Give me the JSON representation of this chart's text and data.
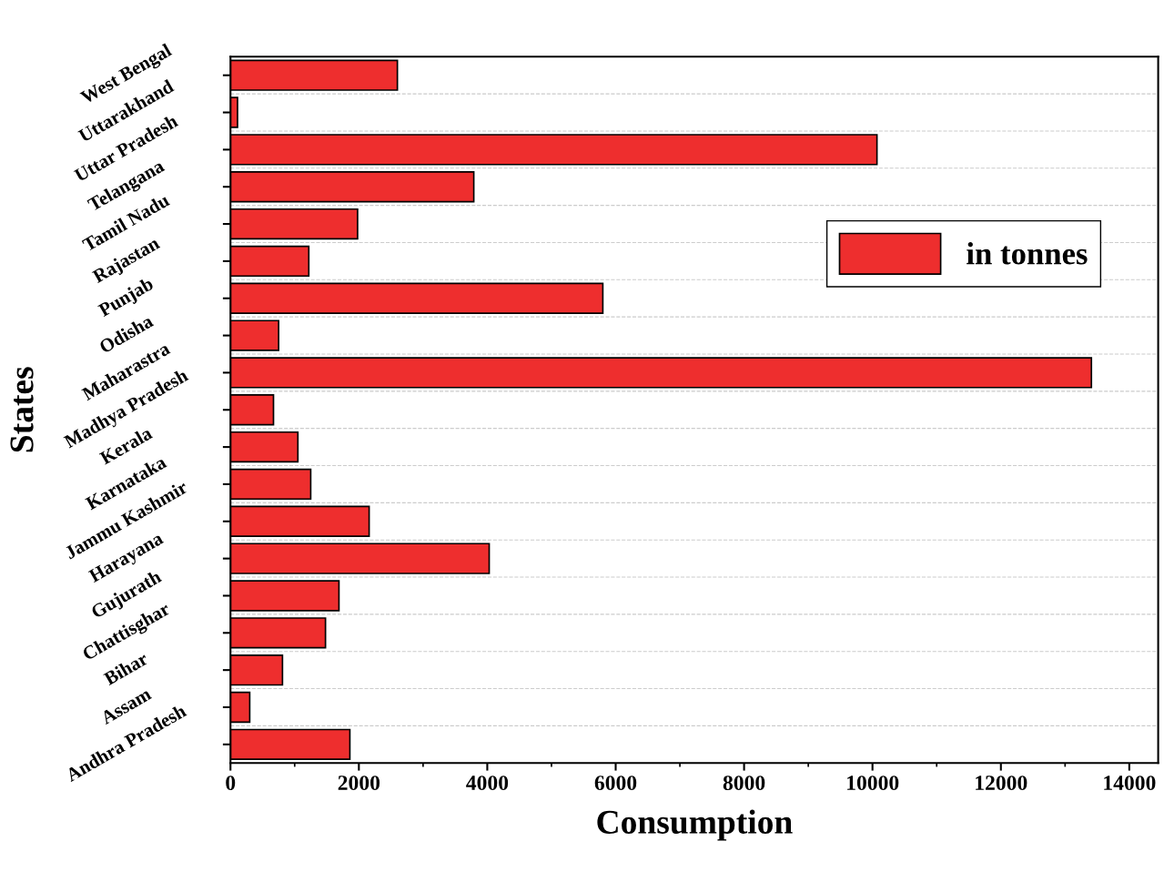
{
  "chart_data": {
    "type": "bar",
    "orientation": "horizontal",
    "xlabel": "Consumption",
    "ylabel": "States",
    "categories": [
      "West Bengal",
      "Uttarakhand",
      "Uttar Pradesh",
      "Telangana",
      "Tamil Nadu",
      "Rajastan",
      "Punjab",
      "Odisha",
      "Maharastra",
      "Madhya Pradesh",
      "Kerala",
      "Karnataka",
      "Jammu Kashmir",
      "Harayana",
      "Gujurath",
      "Chattisghar",
      "Bihar",
      "Assam",
      "Andhra Pradesh"
    ],
    "series": [
      {
        "name": "in tonnes",
        "color": "#ee2e2e",
        "values": [
          2600,
          110,
          10070,
          3790,
          1980,
          1220,
          5800,
          750,
          13410,
          670,
          1050,
          1250,
          2160,
          4030,
          1690,
          1480,
          810,
          300,
          1860
        ]
      }
    ],
    "xlim": [
      0,
      14450
    ],
    "xticks": [
      0,
      2000,
      4000,
      6000,
      8000,
      10000,
      12000,
      14000
    ],
    "grid": "y",
    "legend": "top right"
  }
}
